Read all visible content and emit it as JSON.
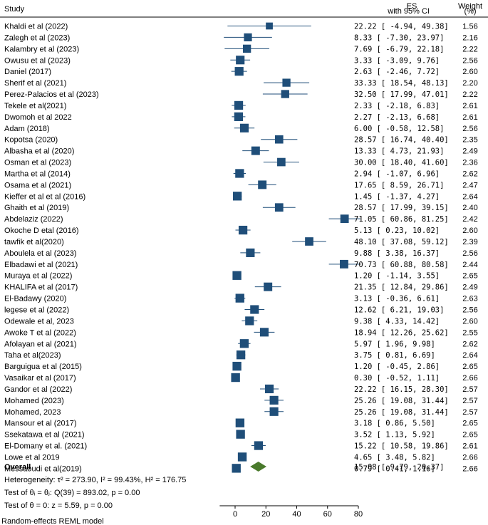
{
  "chart_data": {
    "type": "forest",
    "header": {
      "study": "Study",
      "es_line1": "ES",
      "es_line2": "with 95% CI",
      "weight_line1": "Weight",
      "weight_line2": "(%)"
    },
    "studies": [
      {
        "name": "Khaldi et al (2022)",
        "es": 22.22,
        "lo": -4.94,
        "hi": 49.38,
        "weight": 1.56
      },
      {
        "name": "Zalegh et al (2023)",
        "es": 8.33,
        "lo": -7.3,
        "hi": 23.97,
        "weight": 2.16
      },
      {
        "name": "Kalambry et al (2023)",
        "es": 7.69,
        "lo": -6.79,
        "hi": 22.18,
        "weight": 2.22
      },
      {
        "name": "Owusu et al (2023)",
        "es": 3.33,
        "lo": -3.09,
        "hi": 9.76,
        "weight": 2.56
      },
      {
        "name": "Daniel (2017)",
        "es": 2.63,
        "lo": -2.46,
        "hi": 7.72,
        "weight": 2.6
      },
      {
        "name": "Sherif et al (2021)",
        "es": 33.33,
        "lo": 18.54,
        "hi": 48.13,
        "weight": 2.2
      },
      {
        "name": "Perez-Palacios et al (2023)",
        "es": 32.5,
        "lo": 17.99,
        "hi": 47.01,
        "weight": 2.22
      },
      {
        "name": "Tekele et al(2021)",
        "es": 2.33,
        "lo": -2.18,
        "hi": 6.83,
        "weight": 2.61
      },
      {
        "name": "Dwomoh et al 2022",
        "es": 2.27,
        "lo": -2.13,
        "hi": 6.68,
        "weight": 2.61
      },
      {
        "name": "Adam (2018)",
        "es": 6.0,
        "lo": -0.58,
        "hi": 12.58,
        "weight": 2.56
      },
      {
        "name": "Kopotsa (2020)",
        "es": 28.57,
        "lo": 16.74,
        "hi": 40.4,
        "weight": 2.35
      },
      {
        "name": "Albasha et al (2020)",
        "es": 13.33,
        "lo": 4.73,
        "hi": 21.93,
        "weight": 2.49
      },
      {
        "name": "Osman et al (2023)",
        "es": 30.0,
        "lo": 18.4,
        "hi": 41.6,
        "weight": 2.36
      },
      {
        "name": "Martha et al (2014)",
        "es": 2.94,
        "lo": -1.07,
        "hi": 6.96,
        "weight": 2.62
      },
      {
        "name": "Osama et al (2021)",
        "es": 17.65,
        "lo": 8.59,
        "hi": 26.71,
        "weight": 2.47
      },
      {
        "name": "Kieffer et al et al (2016)",
        "es": 1.45,
        "lo": -1.37,
        "hi": 4.27,
        "weight": 2.64
      },
      {
        "name": "Ghaith et al (2019)",
        "es": 28.57,
        "lo": 17.99,
        "hi": 39.15,
        "weight": 2.4
      },
      {
        "name": "Abdelaziz (2022)",
        "es": 71.05,
        "lo": 60.86,
        "hi": 81.25,
        "weight": 2.42
      },
      {
        "name": "Okoche D etal (2016)",
        "es": 5.13,
        "lo": 0.23,
        "hi": 10.02,
        "weight": 2.6
      },
      {
        "name": "tawfik et al(2020)",
        "es": 48.1,
        "lo": 37.08,
        "hi": 59.12,
        "weight": 2.39
      },
      {
        "name": "Aboulela et al (2023)",
        "es": 9.88,
        "lo": 3.38,
        "hi": 16.37,
        "weight": 2.56
      },
      {
        "name": "Elbadawi et al (2021)",
        "es": 70.73,
        "lo": 60.88,
        "hi": 80.58,
        "weight": 2.44
      },
      {
        "name": "Muraya et al (2022)",
        "es": 1.2,
        "lo": -1.14,
        "hi": 3.55,
        "weight": 2.65
      },
      {
        "name": "KHALIFA et al (2017)",
        "es": 21.35,
        "lo": 12.84,
        "hi": 29.86,
        "weight": 2.49
      },
      {
        "name": "El-Badawy (2020)",
        "es": 3.13,
        "lo": -0.36,
        "hi": 6.61,
        "weight": 2.63
      },
      {
        "name": "legese et al (2022)",
        "es": 12.62,
        "lo": 6.21,
        "hi": 19.03,
        "weight": 2.56
      },
      {
        "name": "Odewale et al, 2023",
        "es": 9.38,
        "lo": 4.33,
        "hi": 14.42,
        "weight": 2.6
      },
      {
        "name": "Awoke T et al (2022)",
        "es": 18.94,
        "lo": 12.26,
        "hi": 25.62,
        "weight": 2.55
      },
      {
        "name": "Afolayan et al (2021)",
        "es": 5.97,
        "lo": 1.96,
        "hi": 9.98,
        "weight": 2.62
      },
      {
        "name": "Taha et al(2023)",
        "es": 3.75,
        "lo": 0.81,
        "hi": 6.69,
        "weight": 2.64
      },
      {
        "name": "Barguigua et al (2015)",
        "es": 1.2,
        "lo": -0.45,
        "hi": 2.86,
        "weight": 2.65
      },
      {
        "name": "Vasaikar et al (2017)",
        "es": 0.3,
        "lo": -0.52,
        "hi": 1.11,
        "weight": 2.66
      },
      {
        "name": "Gandor et al (2022)",
        "es": 22.22,
        "lo": 16.15,
        "hi": 28.3,
        "weight": 2.57
      },
      {
        "name": "Mohamed (2023)",
        "es": 25.26,
        "lo": 19.08,
        "hi": 31.44,
        "weight": 2.57
      },
      {
        "name": "Mohamed, 2023",
        "es": 25.26,
        "lo": 19.08,
        "hi": 31.44,
        "weight": 2.57
      },
      {
        "name": "Mansour et al (2017)",
        "es": 3.18,
        "lo": 0.86,
        "hi": 5.5,
        "weight": 2.65
      },
      {
        "name": "Ssekatawa et al (2021)",
        "es": 3.52,
        "lo": 1.13,
        "hi": 5.92,
        "weight": 2.65
      },
      {
        "name": "El-Domany  et al. (2021)",
        "es": 15.22,
        "lo": 10.58,
        "hi": 19.86,
        "weight": 2.61
      },
      {
        "name": "Lowe et al 2019",
        "es": 4.65,
        "lo": 3.48,
        "hi": 5.82,
        "weight": 2.66
      },
      {
        "name": "Messaoudi et al(2019)",
        "es": 0.79,
        "lo": 0.41,
        "hi": 1.16,
        "weight": 2.66
      }
    ],
    "overall": {
      "label": "Overall",
      "es": 15.08,
      "lo": 9.79,
      "hi": 20.37
    },
    "heterogeneity": "Heterogeneity: τ² = 273.90, I² = 99.43%, H² = 176.75",
    "test_homogeneity": "Test of θᵢ = θⱼ: Q(39) = 893.02, p = 0.00",
    "test_overall": "Test of θ = 0: z = 5.59, p = 0.00",
    "model_note": "Random-effects REML model",
    "x_ticks": [
      0,
      20,
      40,
      60,
      80
    ],
    "xlim": [
      -10,
      80
    ],
    "colors": {
      "marker": "#1f4e79",
      "line": "#1f4e79",
      "diamond": "#4a7a2c"
    }
  }
}
